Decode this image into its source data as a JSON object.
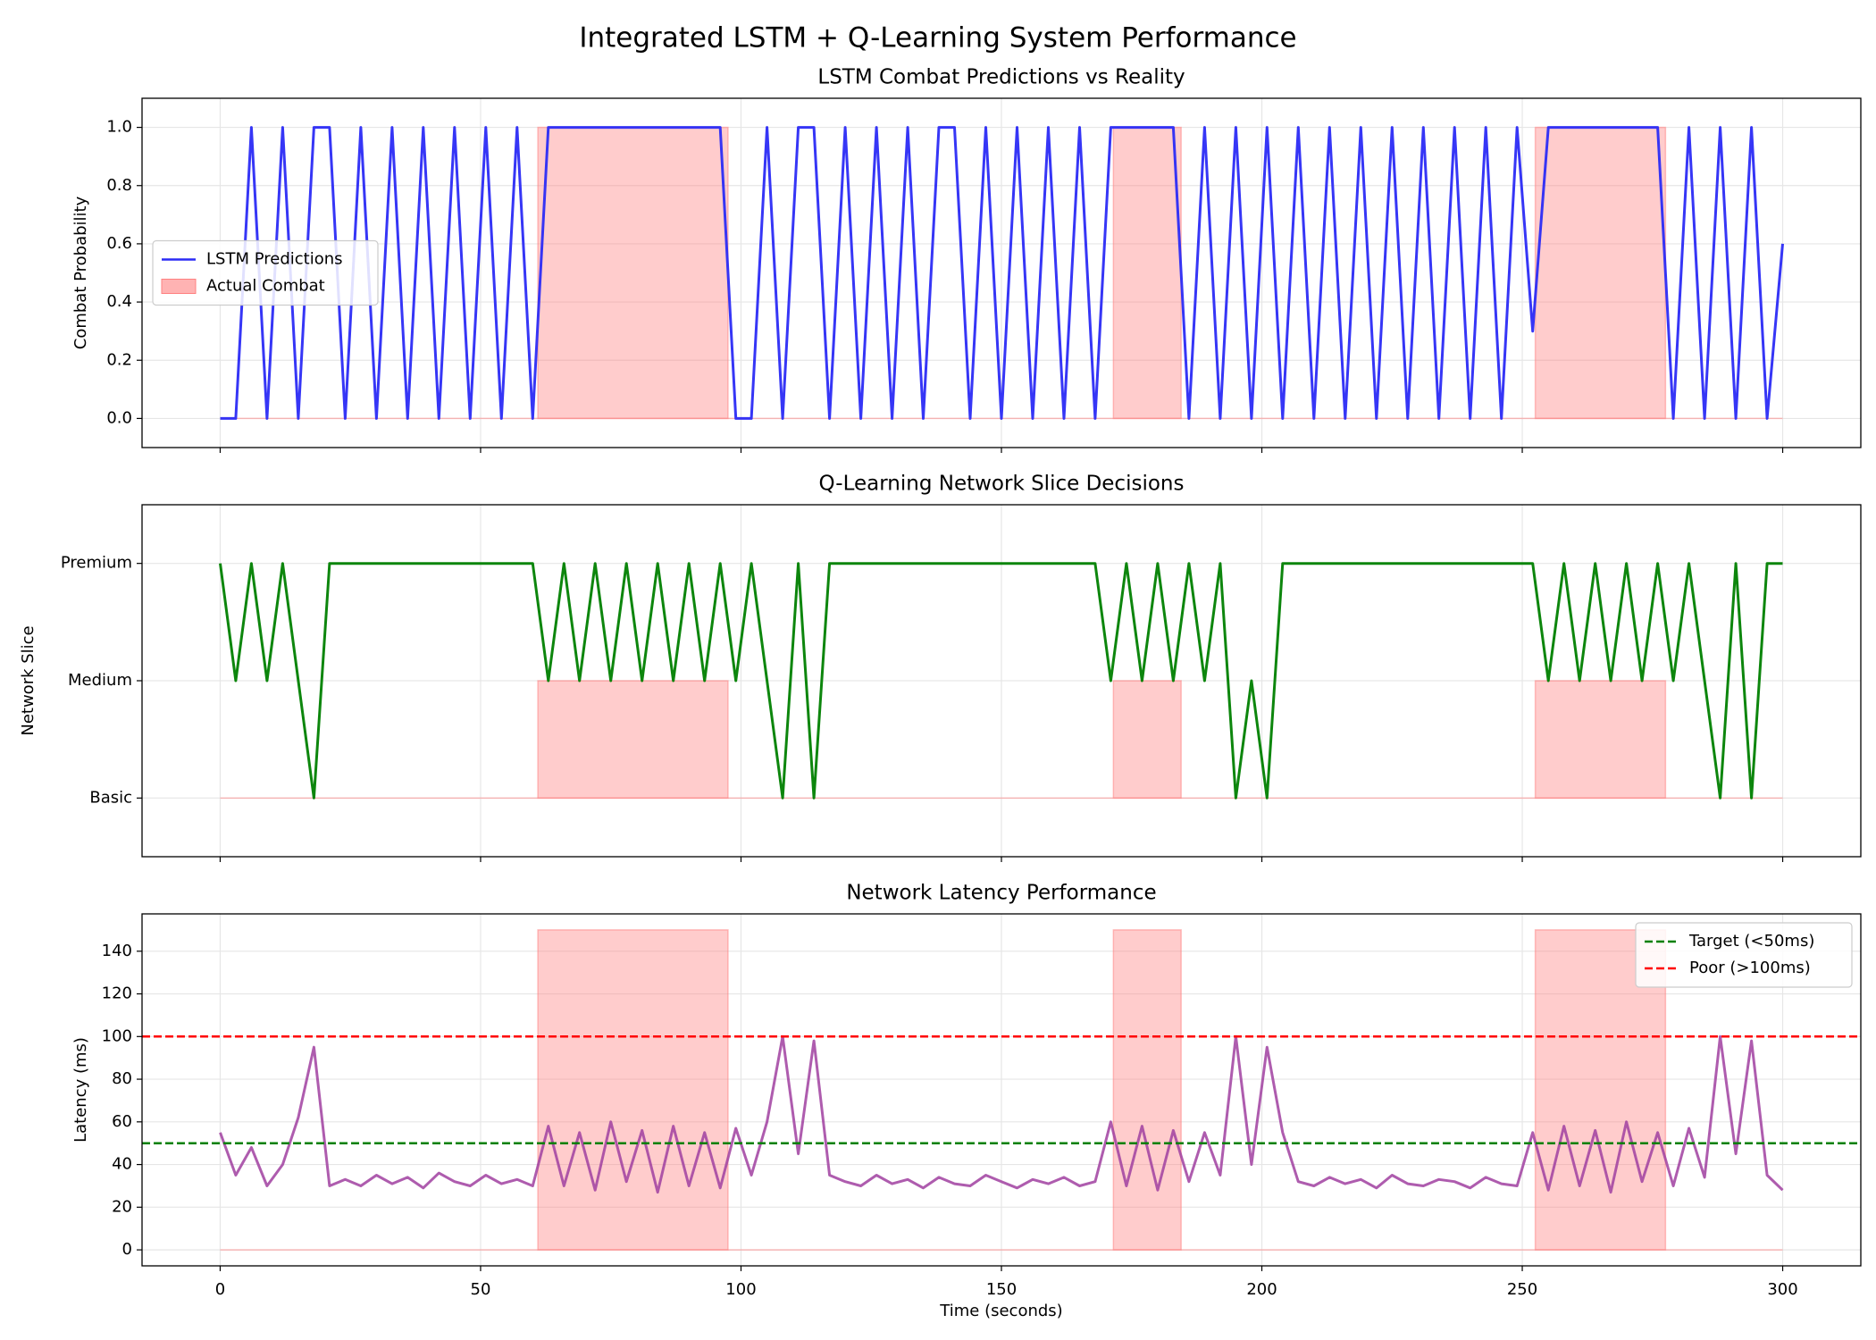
{
  "title": "Integrated LSTM + Q-Learning System Performance",
  "chart_data": [
    {
      "type": "line",
      "title": "LSTM Combat Predictions vs Reality",
      "ylabel": "Combat Probability",
      "x": [
        0,
        3,
        6,
        9,
        12,
        15,
        18,
        21,
        24,
        27,
        30,
        33,
        36,
        39,
        42,
        45,
        48,
        51,
        54,
        57,
        60,
        63,
        66,
        69,
        72,
        75,
        78,
        81,
        84,
        87,
        90,
        93,
        96,
        99,
        102,
        105,
        108,
        111,
        114,
        117,
        120,
        123,
        126,
        129,
        132,
        135,
        138,
        141,
        144,
        147,
        150,
        153,
        156,
        159,
        162,
        165,
        168,
        171,
        174,
        177,
        180,
        183,
        186,
        189,
        192,
        195,
        198,
        201,
        204,
        207,
        210,
        213,
        216,
        219,
        222,
        225,
        228,
        231,
        234,
        237,
        240,
        243,
        246,
        249,
        252,
        255,
        258,
        261,
        264,
        267,
        270,
        273,
        276,
        279,
        282,
        285,
        288,
        291,
        294,
        297,
        300
      ],
      "series": [
        {
          "name": "LSTM Predictions",
          "color": "#2b2bf5",
          "values": [
            0,
            0,
            1,
            0,
            1,
            0,
            1,
            1,
            0,
            1,
            0,
            1,
            0,
            1,
            0,
            1,
            0,
            1,
            0,
            1,
            0,
            1,
            1,
            1,
            1,
            1,
            1,
            1,
            1,
            1,
            1,
            1,
            1,
            0,
            0,
            1,
            0,
            1,
            1,
            0,
            1,
            0,
            1,
            0,
            1,
            0,
            1,
            1,
            0,
            1,
            0,
            1,
            0,
            1,
            0,
            1,
            0,
            1,
            1,
            1,
            1,
            1,
            0,
            1,
            0,
            1,
            0,
            1,
            0,
            1,
            0,
            1,
            0,
            1,
            0,
            1,
            0,
            1,
            0,
            1,
            0,
            1,
            0,
            1,
            0.3,
            1,
            1,
            1,
            1,
            1,
            1,
            1,
            1,
            0,
            1,
            0,
            1,
            0,
            1,
            0,
            0.6
          ]
        }
      ],
      "combat": {
        "name": "Actual Combat",
        "color": "#ff8080",
        "starts": [
          61,
          171.5,
          252.5
        ],
        "ends": [
          97.5,
          184.5,
          277.5
        ],
        "level": 1
      },
      "xlim": [
        -15,
        315
      ],
      "xticks": [
        0,
        50,
        100,
        150,
        200,
        250,
        300
      ],
      "ylim": [
        -0.1,
        1.1
      ],
      "yticks": [
        {
          "value": 0,
          "label": "0.0"
        },
        {
          "value": 0.2,
          "label": "0.2"
        },
        {
          "value": 0.4,
          "label": "0.4"
        },
        {
          "value": 0.6,
          "label": "0.6"
        },
        {
          "value": 0.8,
          "label": "0.8"
        },
        {
          "value": 1,
          "label": "1.0"
        }
      ],
      "grid": true,
      "legend": "center left"
    },
    {
      "type": "line",
      "title": "Q-Learning Network Slice Decisions",
      "ylabel": "Network Slice",
      "x": [
        0,
        3,
        6,
        9,
        12,
        15,
        18,
        21,
        24,
        27,
        30,
        33,
        36,
        39,
        42,
        45,
        48,
        51,
        54,
        57,
        60,
        63,
        66,
        69,
        72,
        75,
        78,
        81,
        84,
        87,
        90,
        93,
        96,
        99,
        102,
        105,
        108,
        111,
        114,
        117,
        120,
        123,
        126,
        129,
        132,
        135,
        138,
        141,
        144,
        147,
        150,
        153,
        156,
        159,
        162,
        165,
        168,
        171,
        174,
        177,
        180,
        183,
        186,
        189,
        192,
        195,
        198,
        201,
        204,
        207,
        210,
        213,
        216,
        219,
        222,
        225,
        228,
        231,
        234,
        237,
        240,
        243,
        246,
        249,
        252,
        255,
        258,
        261,
        264,
        267,
        270,
        273,
        276,
        279,
        282,
        285,
        288,
        291,
        294,
        297,
        300
      ],
      "series": [
        {
          "color": "#008000",
          "values": [
            2,
            1,
            2,
            1,
            2,
            1,
            0,
            2,
            2,
            2,
            2,
            2,
            2,
            2,
            2,
            2,
            2,
            2,
            2,
            2,
            2,
            1,
            2,
            1,
            2,
            1,
            2,
            1,
            2,
            1,
            2,
            1,
            2,
            1,
            2,
            1,
            0,
            2,
            0,
            2,
            2,
            2,
            2,
            2,
            2,
            2,
            2,
            2,
            2,
            2,
            2,
            2,
            2,
            2,
            2,
            2,
            2,
            1,
            2,
            1,
            2,
            1,
            2,
            1,
            2,
            0,
            1,
            0,
            2,
            2,
            2,
            2,
            2,
            2,
            2,
            2,
            2,
            2,
            2,
            2,
            2,
            2,
            2,
            2,
            2,
            1,
            2,
            1,
            2,
            1,
            2,
            1,
            2,
            1,
            2,
            1,
            0,
            2,
            0,
            2,
            2
          ]
        }
      ],
      "combat": {
        "color": "#ff8080",
        "starts": [
          61,
          171.5,
          252.5
        ],
        "ends": [
          97.5,
          184.5,
          277.5
        ],
        "level": 1
      },
      "xlim": [
        -15,
        315
      ],
      "xticks": [
        0,
        50,
        100,
        150,
        200,
        250,
        300
      ],
      "ylim": [
        -0.5,
        2.5
      ],
      "yticks": [
        {
          "value": 0,
          "label": "Basic"
        },
        {
          "value": 1,
          "label": "Medium"
        },
        {
          "value": 2,
          "label": "Premium"
        }
      ],
      "grid": true
    },
    {
      "type": "line",
      "title": "Network Latency Performance",
      "ylabel": "Latency (ms)",
      "xlabel": "Time (seconds)",
      "x": [
        0,
        3,
        6,
        9,
        12,
        15,
        18,
        21,
        24,
        27,
        30,
        33,
        36,
        39,
        42,
        45,
        48,
        51,
        54,
        57,
        60,
        63,
        66,
        69,
        72,
        75,
        78,
        81,
        84,
        87,
        90,
        93,
        96,
        99,
        102,
        105,
        108,
        111,
        114,
        117,
        120,
        123,
        126,
        129,
        132,
        135,
        138,
        141,
        144,
        147,
        150,
        153,
        156,
        159,
        162,
        165,
        168,
        171,
        174,
        177,
        180,
        183,
        186,
        189,
        192,
        195,
        198,
        201,
        204,
        207,
        210,
        213,
        216,
        219,
        222,
        225,
        228,
        231,
        234,
        237,
        240,
        243,
        246,
        249,
        252,
        255,
        258,
        261,
        264,
        267,
        270,
        273,
        276,
        279,
        282,
        285,
        288,
        291,
        294,
        297,
        300
      ],
      "series": [
        {
          "color": "#a040a0",
          "values": [
            55,
            35,
            48,
            30,
            40,
            62,
            95,
            30,
            33,
            30,
            35,
            31,
            34,
            29,
            36,
            32,
            30,
            35,
            31,
            33,
            30,
            58,
            30,
            55,
            28,
            60,
            32,
            56,
            27,
            58,
            30,
            55,
            29,
            57,
            35,
            60,
            100,
            45,
            98,
            35,
            32,
            30,
            35,
            31,
            33,
            29,
            34,
            31,
            30,
            35,
            32,
            29,
            33,
            31,
            34,
            30,
            32,
            60,
            30,
            58,
            28,
            56,
            32,
            55,
            35,
            100,
            40,
            95,
            55,
            32,
            30,
            34,
            31,
            33,
            29,
            35,
            31,
            30,
            33,
            32,
            29,
            34,
            31,
            30,
            55,
            28,
            58,
            30,
            56,
            27,
            60,
            32,
            55,
            30,
            57,
            34,
            100,
            45,
            98,
            35,
            28
          ]
        }
      ],
      "combat": {
        "color": "#ff8080",
        "starts": [
          61,
          171.5,
          252.5
        ],
        "ends": [
          97.5,
          184.5,
          277.5
        ],
        "level": 150
      },
      "hlines": [
        {
          "name": "Target (<50ms)",
          "value": 50,
          "color": "#008000"
        },
        {
          "name": "Poor (>100ms)",
          "value": 100,
          "color": "#ff0000"
        }
      ],
      "xlim": [
        -15,
        315
      ],
      "xticks": [
        0,
        50,
        100,
        150,
        200,
        250,
        300
      ],
      "ylim": [
        -7.5,
        157.5
      ],
      "yticks": [
        0,
        20,
        40,
        60,
        80,
        100,
        120,
        140
      ],
      "grid": true,
      "legend": "upper right"
    }
  ]
}
